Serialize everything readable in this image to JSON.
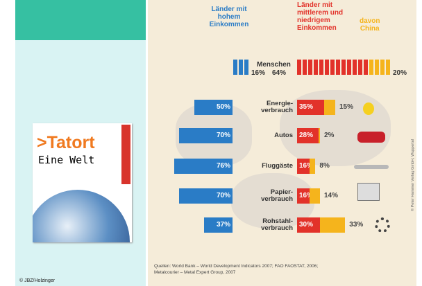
{
  "slide": {
    "credit": "© JBZ/Holzinger",
    "book": {
      "title": ">Tatort",
      "subtitle": "Eine Welt"
    }
  },
  "chart_data": {
    "type": "butterfly",
    "series": [
      {
        "name": "Länder mit\nhohem\nEinkommen",
        "color": "#2a7cc6",
        "values": [
          50,
          70,
          76,
          70,
          37
        ],
        "value_labels": [
          "50%",
          "70%",
          "76%",
          "70%",
          "37%"
        ]
      },
      {
        "name": "Länder mit\nmittlerem und\nniedrigem\nEinkommen",
        "color": "#e2322a",
        "values": [
          35,
          28,
          16,
          16,
          30
        ],
        "value_labels": [
          "35%",
          "28%",
          "16%",
          "16%",
          "30%"
        ]
      },
      {
        "name": "davon\nChina",
        "color": "#f5b41c",
        "values": [
          15,
          2,
          8,
          14,
          33
        ],
        "value_labels": [
          "15%",
          "2%",
          "8%",
          "14%",
          "33%"
        ]
      }
    ],
    "categories": [
      "Energie-\nverbrauch",
      "Autos",
      "Fluggäste",
      "Papier-\nverbrauch",
      "Rohstahl-\nverbrauch"
    ],
    "people": {
      "label": "Menschen",
      "values": [
        16,
        64,
        20
      ],
      "value_labels": [
        "16%",
        "64%",
        "20%"
      ]
    },
    "source": "Quellen: World Bank – World Development Indicators 2007; FAO FAOSTAT, 2006;\nMetalcourier – Metal Expert Group, 2007",
    "credit": "© Peter Hammer Verlag GmbH, Wuppertal"
  }
}
